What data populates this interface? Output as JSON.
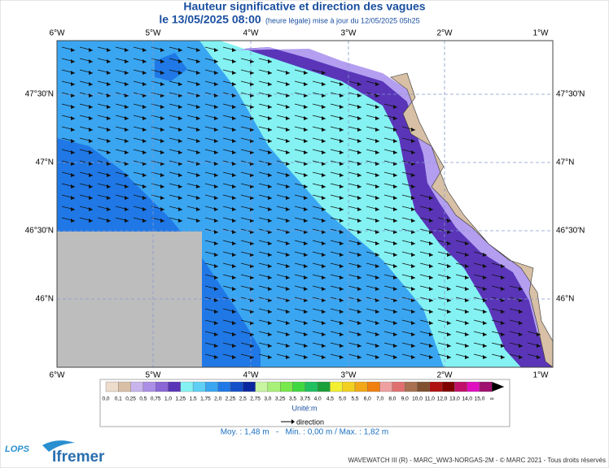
{
  "header": {
    "title": "Hauteur significative et direction des vagues",
    "date": "le 13/05/2025 08:00",
    "time_note": "(heure légale) mise à jour du 12/05/2025 05h25"
  },
  "map": {
    "lon_labels": [
      "6°W",
      "5°W",
      "4°W",
      "3°W",
      "2°W",
      "1°W"
    ],
    "lat_labels": [
      "47°30'N",
      "47°N",
      "46°30'N",
      "46°N"
    ]
  },
  "legend": {
    "labels": [
      "0,0",
      "0,1",
      "0,25",
      "0,5",
      "0,75",
      "1,0",
      "1,25",
      "1,5",
      "1,75",
      "2,0",
      "2,25",
      "2,5",
      "2,75",
      "3,0",
      "3,25",
      "3,5",
      "3,75",
      "4,0",
      "4,5",
      "5,0",
      "5,5",
      "6,0",
      "7,0",
      "8,0",
      "9,0",
      "10,0",
      "11,0",
      "12,0",
      "13,0",
      "14,0",
      "15,0",
      "∞"
    ],
    "colors": [
      "#eddccb",
      "#d9bfa6",
      "#c9b4ee",
      "#ab8fe6",
      "#8a66d6",
      "#5a35b8",
      "#84f2f2",
      "#5fd0f5",
      "#3aa6f2",
      "#1f78e6",
      "#1450c8",
      "#0a28a0",
      "#c8f5a0",
      "#a8f078",
      "#78e84a",
      "#40d840",
      "#20c060",
      "#1aa038",
      "#f2f030",
      "#f2d020",
      "#f2a818",
      "#f08010",
      "#f0a0a0",
      "#e07070",
      "#a87050",
      "#805030",
      "#b01010",
      "#800000",
      "#c0106a",
      "#e010c0",
      "#a01070"
    ],
    "unit": "Unité:m",
    "direction": "direction",
    "stats": "Moy. : 1,48 m   -   Min. : 0,00 m / Max. : 1,82 m"
  },
  "footer": {
    "logo_left": "LOPS",
    "logo_right": "Ifremer",
    "credits": "WAVEWATCH III (R) - MARC_WW3-NORGAS-2M - © MARC 2021 - Tous droits réservés"
  }
}
